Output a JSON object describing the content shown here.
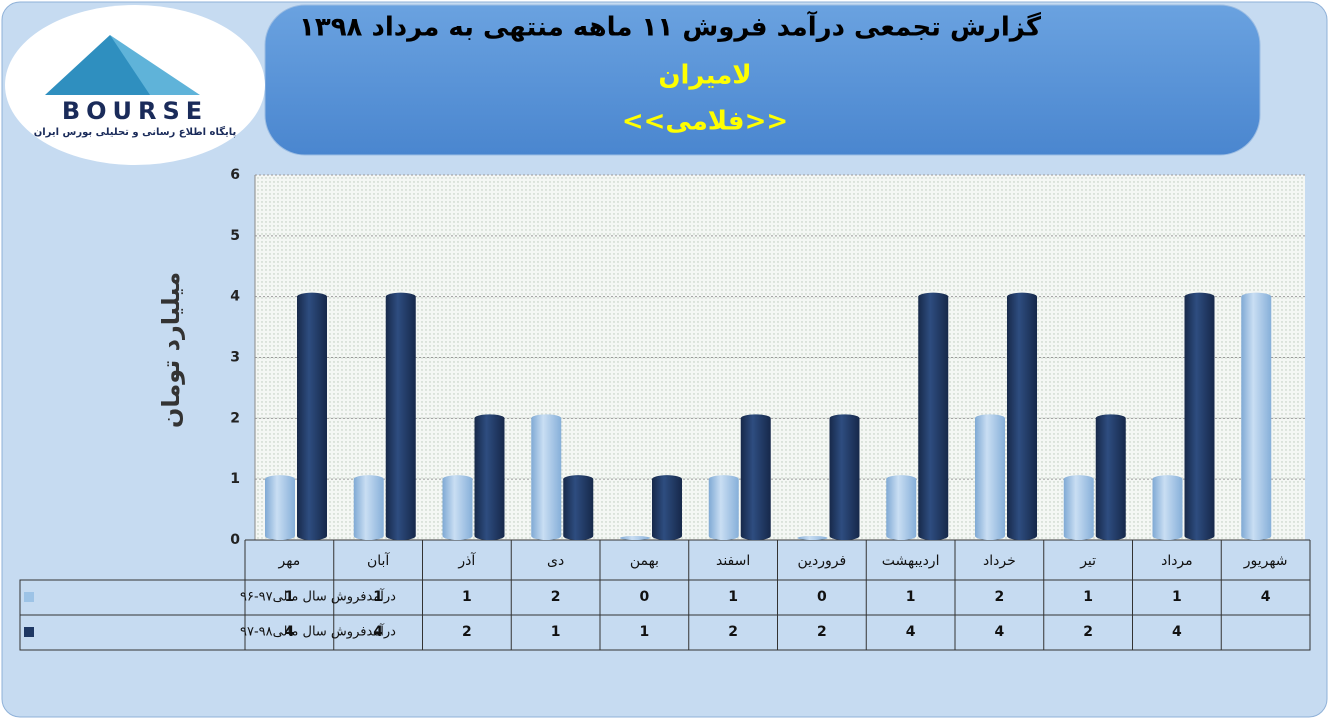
{
  "logo": {
    "name": "BOURSE",
    "tagline": "پایگاه اطلاع رسانی و تحلیلی بورس ایران"
  },
  "chart_data": {
    "type": "bar",
    "title": "گزارش تجمعی درآمد فروش ۱۱ ماهه منتهی به مرداد ۱۳۹۸",
    "subtitle": "لامیران",
    "subtitle2": "<<فلامی>>",
    "y_label": "میلیارد تومان",
    "categories": [
      "مهر",
      "آبان",
      "آذر",
      "دی",
      "بهمن",
      "اسفند",
      "فروردین",
      "اردیبهشت",
      "خرداد",
      "تیر",
      "مرداد",
      "شهریور"
    ],
    "series": [
      {
        "name": "درآمدفروش سال مالی۹۷-۹۶",
        "color": "#9dc3e6",
        "values": [
          1,
          1,
          1,
          2,
          0,
          1,
          0,
          1,
          2,
          1,
          1,
          4
        ]
      },
      {
        "name": "درآمدفروش سال مالی۹۸-۹۷",
        "color": "#1f3864",
        "values": [
          4,
          4,
          2,
          1,
          1,
          2,
          2,
          4,
          4,
          2,
          4,
          null
        ]
      }
    ],
    "ylim": [
      0,
      6
    ],
    "yticks": [
      0,
      1,
      2,
      3,
      4,
      5,
      6
    ],
    "grid": true
  }
}
